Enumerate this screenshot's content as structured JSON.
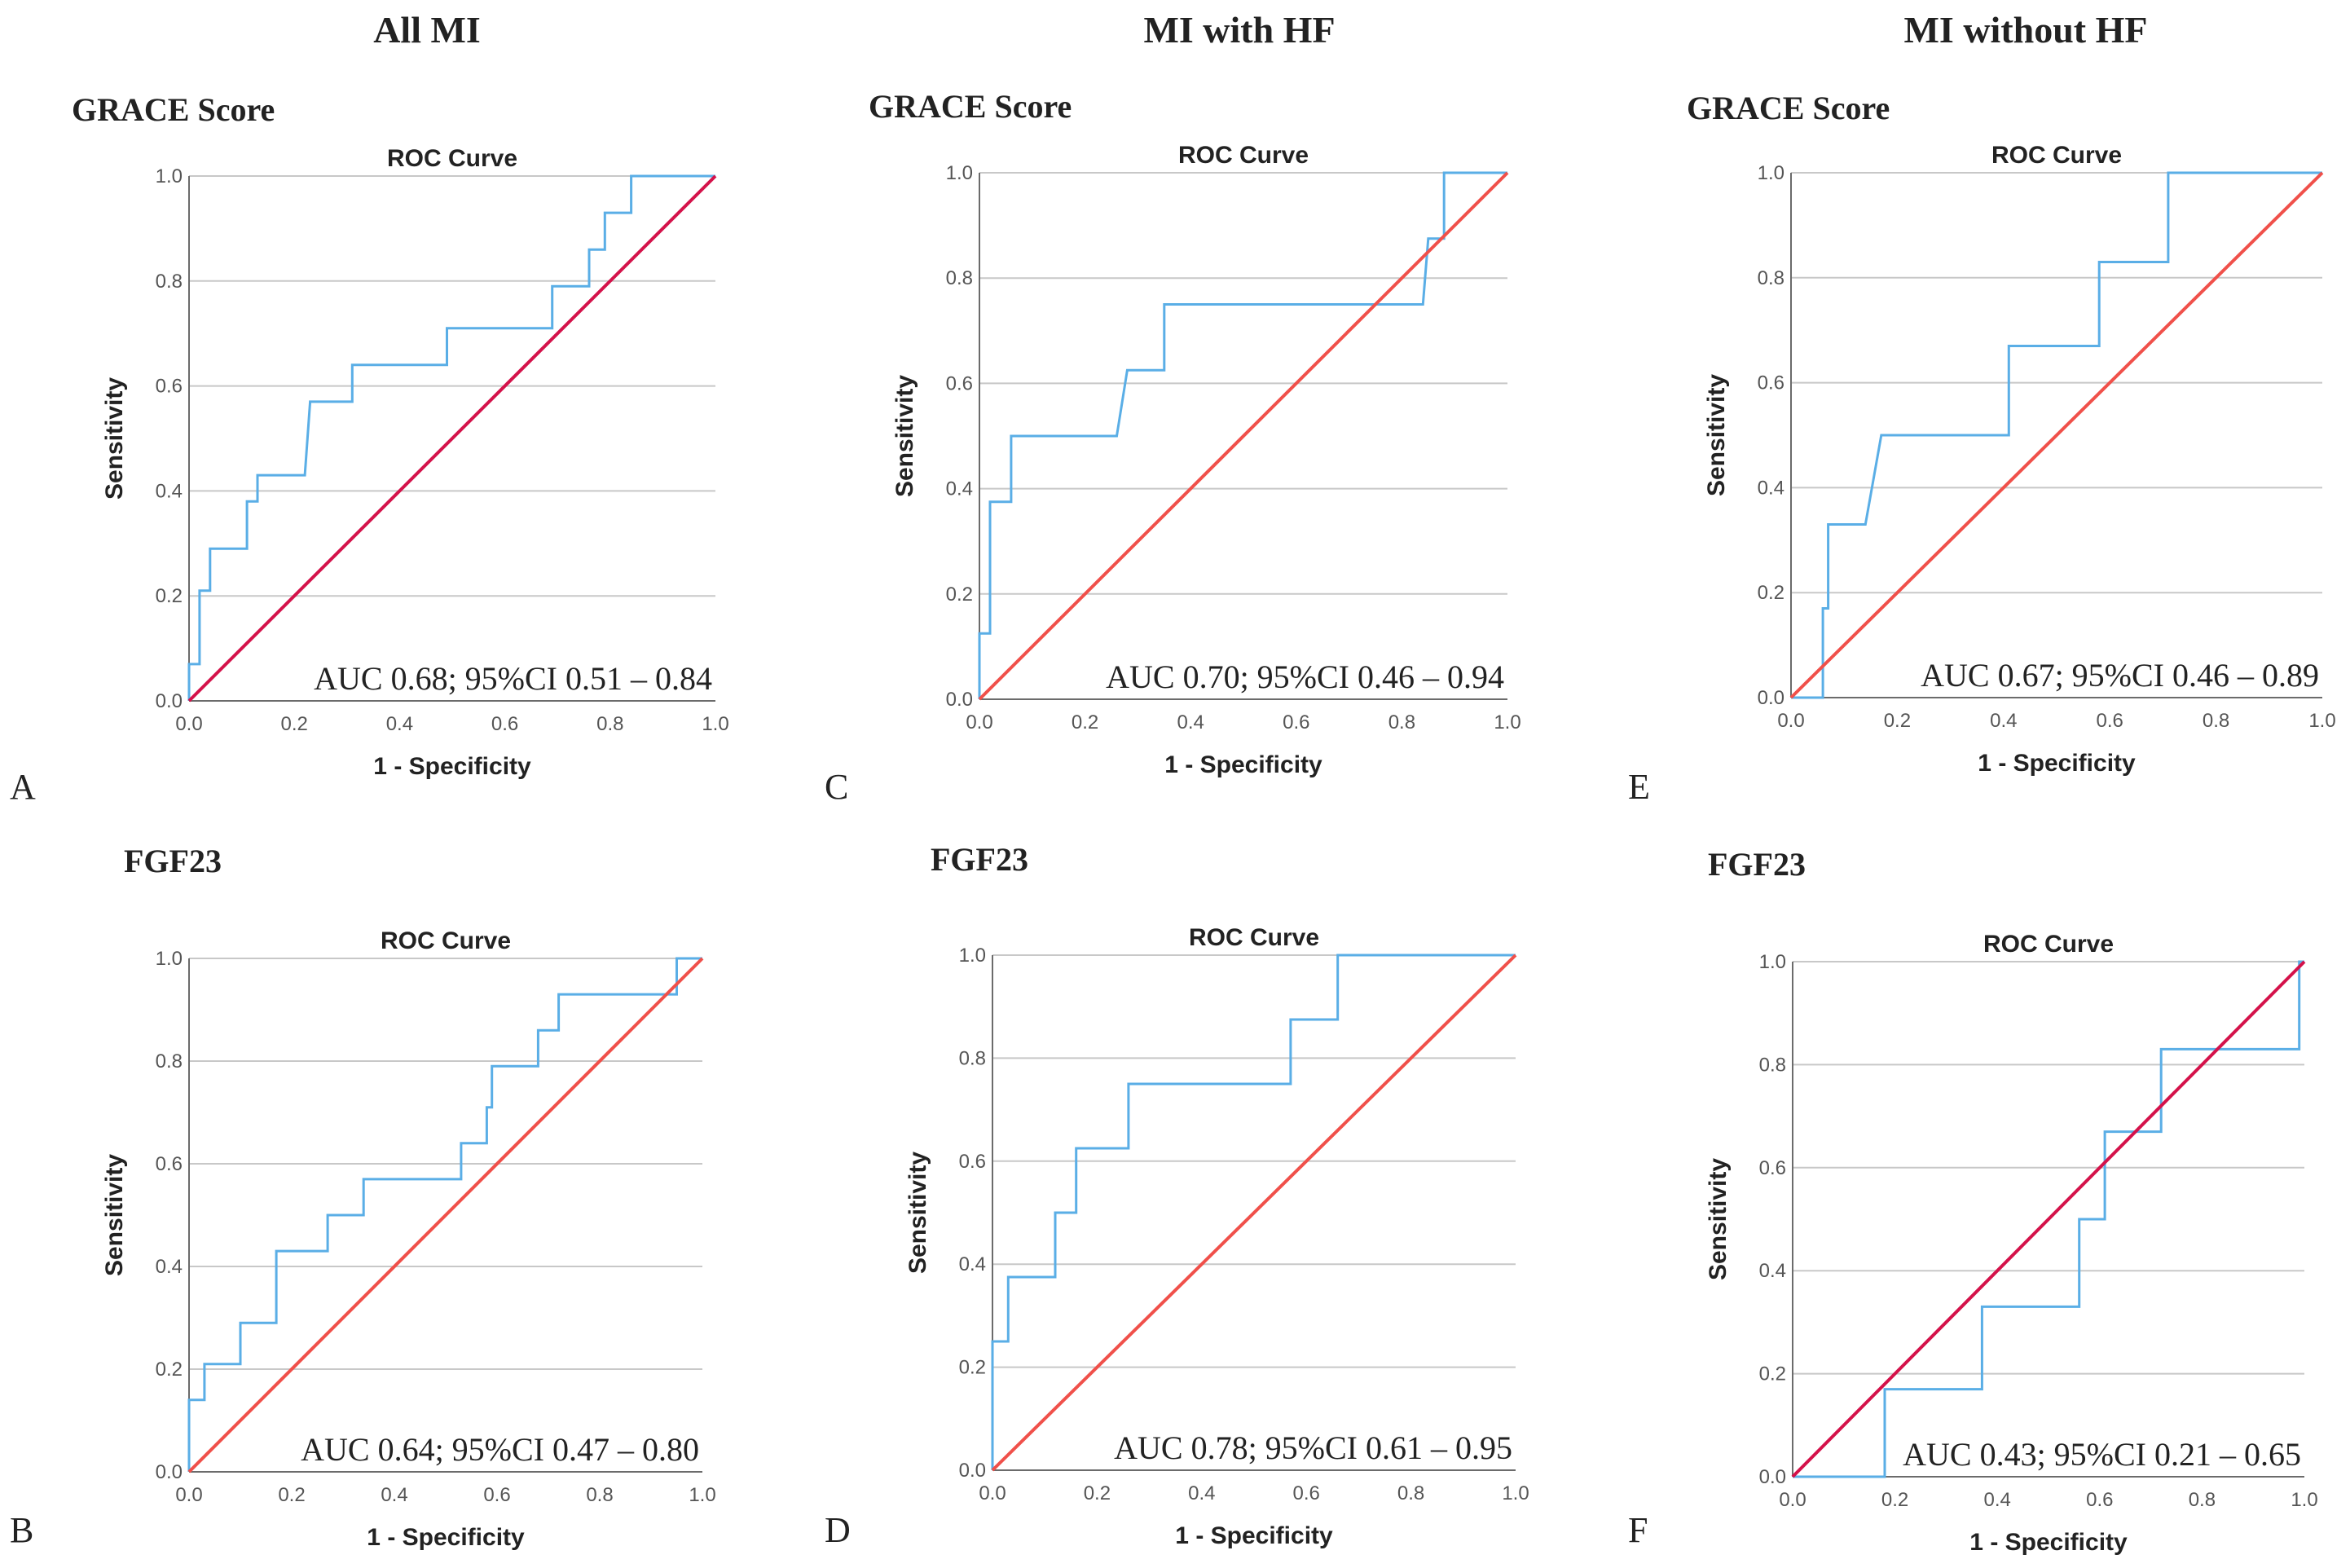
{
  "figure": {
    "column_headers": [
      "All MI",
      "MI with HF",
      "MI without HF"
    ],
    "colors": {
      "roc": "#5aaee6",
      "reference": "#f0504a",
      "reference_dark": "#d4124a",
      "grid": "#c8c8c8",
      "axis": "#6b6b6b",
      "text": "#222222"
    }
  },
  "chart_data": [
    {
      "type": "line",
      "panel": "A",
      "section_label": "GRACE Score",
      "title": "ROC Curve",
      "xlabel": "1 - Specificity",
      "ylabel": "Sensitivity",
      "xlim": [
        0,
        1
      ],
      "ylim": [
        0,
        1
      ],
      "ticks": [
        "0.0",
        "0.2",
        "0.4",
        "0.6",
        "0.8",
        "1.0"
      ],
      "grid": true,
      "annotation": "AUC 0.68; 95%CI 0.51 – 0.84",
      "reference_style": "dark",
      "series": [
        {
          "name": "ROC",
          "x": [
            0,
            0,
            0.02,
            0.02,
            0.04,
            0.04,
            0.11,
            0.11,
            0.13,
            0.13,
            0.22,
            0.23,
            0.23,
            0.31,
            0.31,
            0.49,
            0.49,
            0.69,
            0.69,
            0.74,
            0.76,
            0.76,
            0.79,
            0.79,
            0.81,
            0.81,
            0.84,
            0.84,
            1.0
          ],
          "y": [
            0,
            0.07,
            0.07,
            0.21,
            0.21,
            0.29,
            0.29,
            0.38,
            0.38,
            0.43,
            0.43,
            0.57,
            0.57,
            0.57,
            0.64,
            0.64,
            0.71,
            0.71,
            0.79,
            0.79,
            0.79,
            0.86,
            0.86,
            0.93,
            0.93,
            0.93,
            0.93,
            1.0,
            1.0
          ]
        },
        {
          "name": "Reference",
          "x": [
            0,
            1
          ],
          "y": [
            0,
            1
          ]
        }
      ]
    },
    {
      "type": "line",
      "panel": "B",
      "section_label": "FGF23",
      "title": "ROC Curve",
      "xlabel": "1 - Specificity",
      "ylabel": "Sensitivity",
      "xlim": [
        0,
        1
      ],
      "ylim": [
        0,
        1
      ],
      "ticks": [
        "0.0",
        "0.2",
        "0.4",
        "0.6",
        "0.8",
        "1.0"
      ],
      "grid": true,
      "annotation": "AUC 0.64; 95%CI 0.47 – 0.80",
      "reference_style": "red",
      "series": [
        {
          "name": "ROC",
          "x": [
            0,
            0,
            0.03,
            0.03,
            0.1,
            0.1,
            0.17,
            0.17,
            0.27,
            0.27,
            0.34,
            0.34,
            0.53,
            0.53,
            0.58,
            0.58,
            0.59,
            0.59,
            0.68,
            0.68,
            0.72,
            0.72,
            0.95,
            0.95,
            1.0
          ],
          "y": [
            0,
            0.14,
            0.14,
            0.21,
            0.21,
            0.29,
            0.29,
            0.43,
            0.43,
            0.5,
            0.5,
            0.57,
            0.57,
            0.64,
            0.64,
            0.71,
            0.71,
            0.79,
            0.79,
            0.86,
            0.86,
            0.93,
            0.93,
            1.0,
            1.0
          ]
        },
        {
          "name": "Reference",
          "x": [
            0,
            1
          ],
          "y": [
            0,
            1
          ]
        }
      ]
    },
    {
      "type": "line",
      "panel": "C",
      "section_label": "GRACE Score",
      "title": "ROC Curve",
      "xlabel": "1 - Specificity",
      "ylabel": "Sensitivity",
      "xlim": [
        0,
        1
      ],
      "ylim": [
        0,
        1
      ],
      "ticks": [
        "0.0",
        "0.2",
        "0.4",
        "0.6",
        "0.8",
        "1.0"
      ],
      "grid": true,
      "annotation": "AUC 0.70; 95%CI 0.46 – 0.94",
      "reference_style": "red",
      "series": [
        {
          "name": "ROC",
          "x": [
            0,
            0,
            0.02,
            0.02,
            0.06,
            0.06,
            0.26,
            0.28,
            0.28,
            0.35,
            0.35,
            0.84,
            0.85,
            0.85,
            0.88,
            0.88,
            1.0
          ],
          "y": [
            0,
            0.125,
            0.125,
            0.375,
            0.375,
            0.5,
            0.5,
            0.625,
            0.625,
            0.625,
            0.75,
            0.75,
            0.875,
            0.875,
            0.875,
            1.0,
            1.0
          ]
        },
        {
          "name": "Reference",
          "x": [
            0,
            1
          ],
          "y": [
            0,
            1
          ]
        }
      ]
    },
    {
      "type": "line",
      "panel": "D",
      "section_label": "FGF23",
      "title": "ROC Curve",
      "xlabel": "1 - Specificity",
      "ylabel": "Sensitivity",
      "xlim": [
        0,
        1
      ],
      "ylim": [
        0,
        1
      ],
      "ticks": [
        "0.0",
        "0.2",
        "0.4",
        "0.6",
        "0.8",
        "1.0"
      ],
      "grid": true,
      "annotation": "AUC 0.78; 95%CI 0.61 – 0.95",
      "reference_style": "red",
      "series": [
        {
          "name": "ROC",
          "x": [
            0,
            0,
            0.03,
            0.03,
            0.12,
            0.12,
            0.16,
            0.16,
            0.26,
            0.26,
            0.57,
            0.57,
            0.66,
            0.66,
            1.0
          ],
          "y": [
            0,
            0.25,
            0.25,
            0.375,
            0.375,
            0.5,
            0.5,
            0.625,
            0.625,
            0.75,
            0.75,
            0.875,
            0.875,
            1.0,
            1.0
          ]
        },
        {
          "name": "Reference",
          "x": [
            0,
            1
          ],
          "y": [
            0,
            1
          ]
        }
      ]
    },
    {
      "type": "line",
      "panel": "E",
      "section_label": "GRACE Score",
      "title": "ROC Curve",
      "xlabel": "1 - Specificity",
      "ylabel": "Sensitivity",
      "xlim": [
        0,
        1
      ],
      "ylim": [
        0,
        1
      ],
      "ticks": [
        "0.0",
        "0.2",
        "0.4",
        "0.6",
        "0.8",
        "1.0"
      ],
      "grid": true,
      "annotation": "AUC 0.67; 95%CI 0.46 – 0.89",
      "reference_style": "red",
      "series": [
        {
          "name": "ROC",
          "x": [
            0,
            0.06,
            0.06,
            0.07,
            0.07,
            0.14,
            0.17,
            0.17,
            0.41,
            0.41,
            0.58,
            0.58,
            0.71,
            0.71,
            1.0
          ],
          "y": [
            0,
            0,
            0.17,
            0.17,
            0.33,
            0.33,
            0.5,
            0.5,
            0.5,
            0.67,
            0.67,
            0.83,
            0.83,
            1.0,
            1.0
          ]
        },
        {
          "name": "Reference",
          "x": [
            0,
            1
          ],
          "y": [
            0,
            1
          ]
        }
      ]
    },
    {
      "type": "line",
      "panel": "F",
      "section_label": "FGF23",
      "title": "ROC Curve",
      "xlabel": "1 - Specificity",
      "ylabel": "Sensitivity",
      "xlim": [
        0,
        1
      ],
      "ylim": [
        0,
        1
      ],
      "ticks": [
        "0.0",
        "0.2",
        "0.4",
        "0.6",
        "0.8",
        "1.0"
      ],
      "grid": true,
      "annotation": "AUC 0.43; 95%CI 0.21 – 0.65",
      "reference_style": "dark",
      "series": [
        {
          "name": "ROC",
          "x": [
            0,
            0.18,
            0.18,
            0.37,
            0.37,
            0.56,
            0.56,
            0.61,
            0.61,
            0.72,
            0.72,
            0.99,
            0.99,
            1.0
          ],
          "y": [
            0,
            0,
            0.17,
            0.17,
            0.33,
            0.33,
            0.5,
            0.5,
            0.67,
            0.67,
            0.83,
            0.83,
            1.0,
            1.0
          ]
        },
        {
          "name": "Reference",
          "x": [
            0,
            1
          ],
          "y": [
            0,
            1
          ]
        }
      ]
    }
  ]
}
